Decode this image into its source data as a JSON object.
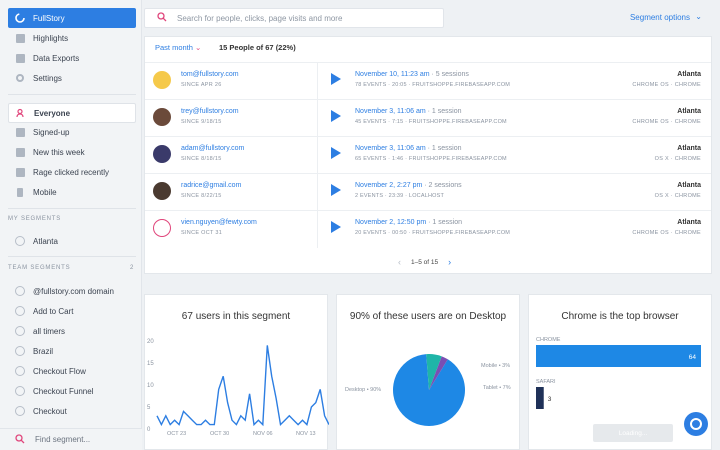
{
  "sidebar": {
    "brand": "FullStory",
    "nav": [
      "Highlights",
      "Data Exports",
      "Settings"
    ],
    "segments": [
      "Everyone",
      "Signed-up",
      "New this week",
      "Rage clicked recently",
      "Mobile"
    ],
    "my_segments_header": "MY SEGMENTS",
    "my_segments": [
      "Atlanta"
    ],
    "team_segments_header": "TEAM SEGMENTS",
    "team_segments_count": "2",
    "team_segments": [
      "@fullstory.com domain",
      "Add to Cart",
      "all timers",
      "Brazil",
      "Checkout Flow",
      "Checkout Funnel",
      "Checkout"
    ],
    "find_placeholder": "Find segment..."
  },
  "header": {
    "search_placeholder": "Search for people, clicks, page visits and more",
    "segment_options": "Segment options"
  },
  "people": {
    "filter": "Past month",
    "count": "15 People of 67 (22%)",
    "rows": [
      {
        "email": "tom@fullstory.com",
        "since": "SINCE APR 26",
        "date": "November 10, 11:23 am",
        "sessions": "· 5 sessions",
        "events": "78 EVENTS · 20:05 · FRUITSHOPPE.FIREBASEAPP.COM",
        "city": "Atlanta",
        "os": "CHROME OS · CHROME"
      },
      {
        "email": "trey@fullstory.com",
        "since": "SINCE 9/18/15",
        "date": "November 3, 11:06 am",
        "sessions": "· 1 session",
        "events": "45 EVENTS · 7:15 · FRUITSHOPPE.FIREBASEAPP.COM",
        "city": "Atlanta",
        "os": "CHROME OS · CHROME"
      },
      {
        "email": "adam@fullstory.com",
        "since": "SINCE 8/18/15",
        "date": "November 3, 11:06 am",
        "sessions": "· 1 session",
        "events": "65 EVENTS · 1:46 · FRUITSHOPPE.FIREBASEAPP.COM",
        "city": "Atlanta",
        "os": "OS X · CHROME"
      },
      {
        "email": "radrice@gmail.com",
        "since": "SINCE 8/22/15",
        "date": "November 2, 2:27 pm",
        "sessions": "· 2 sessions",
        "events": "2 EVENTS · 23:39 · LOCALHOST",
        "city": "Atlanta",
        "os": "OS X · CHROME"
      },
      {
        "email": "vien.nguyen@fewty.com",
        "since": "SINCE OCT 31",
        "date": "November 2, 12:50 pm",
        "sessions": "· 1 session",
        "events": "20 EVENTS · 00:50 · FRUITSHOPPE.FIREBASEAPP.COM",
        "city": "Atlanta",
        "os": "CHROME OS · CHROME"
      }
    ],
    "pagination": "1–5 of 15"
  },
  "cards": {
    "users_title": "67 users in this segment",
    "desktop_title": "90% of these users are on Desktop",
    "browser_title": "Chrome is the top browser",
    "loading": "Loading..."
  },
  "colors": {
    "accent": "#2d7ee2",
    "pie_teal": "#1fb5a8",
    "pie_purple": "#7a4fb3",
    "bar_dark": "#1f3158"
  },
  "chart_data": [
    {
      "type": "line",
      "title": "67 users in this segment",
      "yticks": [
        "20",
        "15",
        "10",
        "5",
        "0"
      ],
      "xticks": [
        "OCT 23",
        "OCT 30",
        "NOV 06",
        "NOV 13"
      ],
      "ylim": [
        0,
        20
      ],
      "values": [
        3,
        1,
        3,
        1,
        2,
        1,
        4,
        3,
        2,
        1,
        1,
        2,
        1,
        1,
        9,
        12,
        6,
        2,
        1,
        3,
        2,
        8,
        1,
        2,
        1,
        19,
        12,
        7,
        1,
        2,
        3,
        2,
        1,
        2,
        1,
        5,
        6,
        9,
        3,
        1
      ]
    },
    {
      "type": "pie",
      "title": "90% of these users are on Desktop",
      "slices": [
        {
          "label": "Desktop",
          "value": 90,
          "text": "Desktop • 90%"
        },
        {
          "label": "Tablet",
          "value": 7,
          "text": "Tablet • 7%"
        },
        {
          "label": "Mobile",
          "value": 3,
          "text": "Mobile • 3%"
        }
      ]
    },
    {
      "type": "bar",
      "title": "Chrome is the top browser",
      "categories": [
        "CHROME",
        "SAFARI"
      ],
      "values": [
        64,
        3
      ]
    }
  ]
}
